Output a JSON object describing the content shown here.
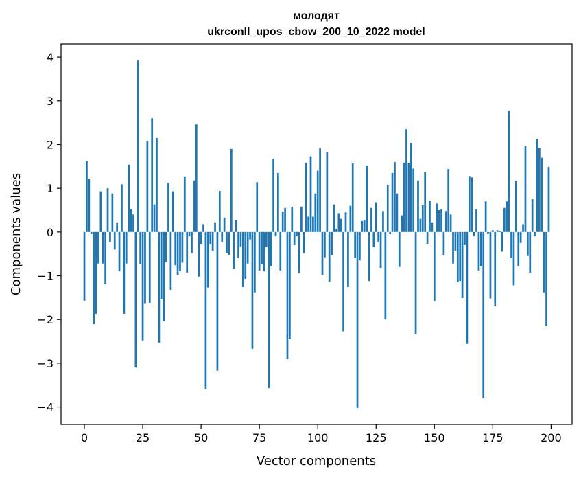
{
  "chart_data": {
    "type": "bar",
    "title": [
      "молодят",
      "ukrconll_upos_cbow_200_10_2022 model"
    ],
    "xlabel": "Vector components",
    "ylabel": "Components values",
    "xlim": [
      -10,
      209
    ],
    "ylim": [
      -4.4,
      4.3
    ],
    "xticks": [
      0,
      25,
      50,
      75,
      100,
      125,
      150,
      175,
      200
    ],
    "yticks": [
      -4,
      -3,
      -2,
      -1,
      0,
      1,
      2,
      3,
      4
    ],
    "grid": false,
    "color": "#1f77b4",
    "x": [
      0,
      1,
      2,
      3,
      4,
      5,
      6,
      7,
      8,
      9,
      10,
      11,
      12,
      13,
      14,
      15,
      16,
      17,
      18,
      19,
      20,
      21,
      22,
      23,
      24,
      25,
      26,
      27,
      28,
      29,
      30,
      31,
      32,
      33,
      34,
      35,
      36,
      37,
      38,
      39,
      40,
      41,
      42,
      43,
      44,
      45,
      46,
      47,
      48,
      49,
      50,
      51,
      52,
      53,
      54,
      55,
      56,
      57,
      58,
      59,
      60,
      61,
      62,
      63,
      64,
      65,
      66,
      67,
      68,
      69,
      70,
      71,
      72,
      73,
      74,
      75,
      76,
      77,
      78,
      79,
      80,
      81,
      82,
      83,
      84,
      85,
      86,
      87,
      88,
      89,
      90,
      91,
      92,
      93,
      94,
      95,
      96,
      97,
      98,
      99,
      100,
      101,
      102,
      103,
      104,
      105,
      106,
      107,
      108,
      109,
      110,
      111,
      112,
      113,
      114,
      115,
      116,
      117,
      118,
      119,
      120,
      121,
      122,
      123,
      124,
      125,
      126,
      127,
      128,
      129,
      130,
      131,
      132,
      133,
      134,
      135,
      136,
      137,
      138,
      139,
      140,
      141,
      142,
      143,
      144,
      145,
      146,
      147,
      148,
      149,
      150,
      151,
      152,
      153,
      154,
      155,
      156,
      157,
      158,
      159,
      160,
      161,
      162,
      163,
      164,
      165,
      166,
      167,
      168,
      169,
      170,
      171,
      172,
      173,
      174,
      175,
      176,
      177,
      178,
      179,
      180,
      181,
      182,
      183,
      184,
      185,
      186,
      187,
      188,
      189,
      190,
      191,
      192,
      193,
      194,
      195,
      196,
      197,
      198,
      199
    ],
    "values": [
      -1.57,
      1.62,
      1.22,
      -0.05,
      -2.11,
      -1.87,
      -0.72,
      0.93,
      -0.72,
      -1.18,
      1.0,
      -0.22,
      0.88,
      -0.4,
      0.22,
      -0.9,
      1.09,
      -1.87,
      -0.72,
      1.54,
      0.52,
      0.4,
      -3.1,
      3.92,
      -0.73,
      -2.48,
      -1.63,
      2.08,
      -1.62,
      2.6,
      0.63,
      2.15,
      -2.53,
      -1.53,
      -2.04,
      -0.69,
      1.12,
      -1.32,
      0.93,
      -0.76,
      -0.98,
      -0.9,
      -0.7,
      1.27,
      -0.93,
      -0.1,
      -0.48,
      1.18,
      2.46,
      -1.02,
      -0.28,
      0.18,
      -3.6,
      -1.27,
      -0.28,
      -0.43,
      0.22,
      -3.17,
      0.94,
      -0.22,
      0.33,
      -0.48,
      -0.52,
      1.9,
      -0.85,
      0.28,
      -0.6,
      -0.33,
      -1.26,
      -1.07,
      -0.72,
      -0.17,
      -2.67,
      -1.38,
      1.14,
      -0.88,
      -0.73,
      -0.9,
      -0.35,
      -3.57,
      -0.78,
      1.67,
      -0.1,
      1.35,
      -0.88,
      0.47,
      0.55,
      -2.91,
      -2.45,
      0.58,
      -0.3,
      -0.1,
      -0.93,
      0.58,
      -0.48,
      1.58,
      0.35,
      1.73,
      0.35,
      0.88,
      1.4,
      1.91,
      -0.98,
      -0.58,
      1.82,
      -1.14,
      -0.53,
      0.63,
      0.07,
      0.43,
      0.3,
      -2.27,
      0.45,
      -1.26,
      0.6,
      1.57,
      -0.6,
      -4.02,
      -0.65,
      0.25,
      0.28,
      1.52,
      -1.12,
      0.55,
      -0.35,
      0.68,
      -0.22,
      -0.82,
      0.48,
      -2.0,
      1.07,
      -0.04,
      1.35,
      1.6,
      0.88,
      -0.8,
      0.38,
      1.58,
      2.35,
      1.58,
      2.04,
      1.45,
      -2.34,
      1.18,
      0.3,
      0.62,
      1.37,
      -0.27,
      0.72,
      0.22,
      -1.58,
      0.65,
      0.5,
      0.53,
      -0.52,
      0.48,
      1.44,
      0.4,
      -0.72,
      -0.43,
      -1.14,
      -1.12,
      -1.51,
      -0.3,
      -2.56,
      1.28,
      1.25,
      -0.1,
      0.52,
      -0.88,
      -0.78,
      -3.8,
      0.7,
      -0.04,
      -1.52,
      0.04,
      -1.7,
      0.04,
      0.03,
      -0.45,
      0.55,
      0.7,
      2.77,
      -0.6,
      -1.22,
      1.17,
      -0.78,
      -0.25,
      0.18,
      1.97,
      -0.55,
      -0.93,
      0.75,
      -0.1,
      2.13,
      1.92,
      1.7,
      -1.38,
      -2.15,
      1.49
    ]
  }
}
